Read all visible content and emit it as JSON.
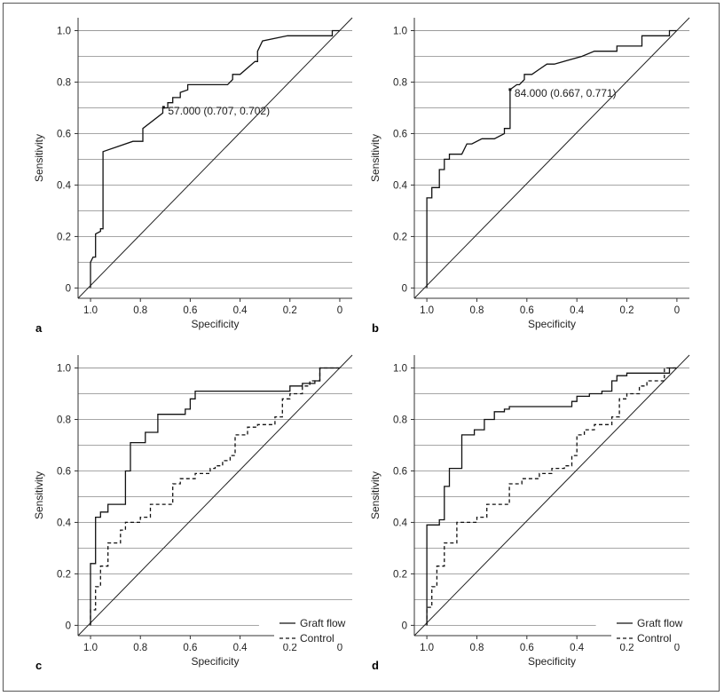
{
  "chart_data": [
    {
      "type": "line",
      "panel_label": "a",
      "xlabel": "Specificity",
      "ylabel": "Sensitivity",
      "xlim": [
        1.05,
        -0.05
      ],
      "ylim": [
        -0.04,
        1.05
      ],
      "x_ticks": [
        "1.0",
        "0.8",
        "0.6",
        "0.4",
        "0.2",
        "0"
      ],
      "y_ticks": [
        "0",
        "0.2",
        "0.4",
        "0.6",
        "0.8",
        "1.0"
      ],
      "annotation": {
        "text": "57.000 (0.707, 0.702)",
        "x": 0.707,
        "y": 0.702
      },
      "series": [
        {
          "name": "ROC",
          "style": "solid",
          "x": [
            1.0,
            1.0,
            0.99,
            0.98,
            0.98,
            0.96,
            0.96,
            0.95,
            0.95,
            0.83,
            0.79,
            0.79,
            0.71,
            0.71,
            0.69,
            0.69,
            0.67,
            0.67,
            0.64,
            0.64,
            0.61,
            0.61,
            0.45,
            0.43,
            0.43,
            0.4,
            0.34,
            0.33,
            0.33,
            0.31,
            0.21,
            0.03,
            0.03,
            0.0
          ],
          "y": [
            0.0,
            0.1,
            0.12,
            0.12,
            0.21,
            0.22,
            0.23,
            0.23,
            0.53,
            0.57,
            0.57,
            0.62,
            0.68,
            0.7,
            0.7,
            0.72,
            0.72,
            0.74,
            0.74,
            0.76,
            0.77,
            0.79,
            0.79,
            0.81,
            0.83,
            0.83,
            0.88,
            0.88,
            0.92,
            0.96,
            0.98,
            0.98,
            1.0,
            1.0
          ]
        }
      ]
    },
    {
      "type": "line",
      "panel_label": "b",
      "xlabel": "Specificity",
      "ylabel": "Sensitivity",
      "xlim": [
        1.05,
        -0.05
      ],
      "ylim": [
        -0.04,
        1.05
      ],
      "x_ticks": [
        "1.0",
        "0.8",
        "0.6",
        "0.4",
        "0.2",
        "0"
      ],
      "y_ticks": [
        "0",
        "0.2",
        "0.4",
        "0.6",
        "0.8",
        "1.0"
      ],
      "annotation": {
        "text": "84.000 (0.667, 0.771)",
        "x": 0.667,
        "y": 0.771
      },
      "series": [
        {
          "name": "ROC",
          "style": "solid",
          "x": [
            1.0,
            1.0,
            0.98,
            0.98,
            0.95,
            0.95,
            0.93,
            0.93,
            0.91,
            0.91,
            0.86,
            0.84,
            0.82,
            0.78,
            0.73,
            0.69,
            0.69,
            0.667,
            0.667,
            0.64,
            0.63,
            0.61,
            0.61,
            0.58,
            0.55,
            0.52,
            0.49,
            0.38,
            0.33,
            0.24,
            0.24,
            0.14,
            0.14,
            0.03,
            0.03,
            0.0
          ],
          "y": [
            0.0,
            0.35,
            0.35,
            0.39,
            0.39,
            0.46,
            0.46,
            0.5,
            0.5,
            0.52,
            0.52,
            0.56,
            0.56,
            0.58,
            0.58,
            0.6,
            0.62,
            0.62,
            0.771,
            0.79,
            0.79,
            0.81,
            0.83,
            0.83,
            0.85,
            0.87,
            0.87,
            0.9,
            0.92,
            0.92,
            0.94,
            0.94,
            0.98,
            0.98,
            1.0,
            1.0
          ]
        }
      ]
    },
    {
      "type": "line",
      "panel_label": "c",
      "xlabel": "Specificity",
      "ylabel": "Sensitivity",
      "xlim": [
        1.05,
        -0.05
      ],
      "ylim": [
        -0.04,
        1.05
      ],
      "x_ticks": [
        "1.0",
        "0.8",
        "0.6",
        "0.4",
        "0.2",
        "0"
      ],
      "y_ticks": [
        "0",
        "0.2",
        "0.4",
        "0.6",
        "0.8",
        "1.0"
      ],
      "legend": {
        "position": "bottom-right"
      },
      "series": [
        {
          "name": "Graft flow",
          "style": "solid",
          "x": [
            1.0,
            1.0,
            0.98,
            0.98,
            0.96,
            0.96,
            0.93,
            0.93,
            0.86,
            0.86,
            0.84,
            0.84,
            0.78,
            0.78,
            0.73,
            0.73,
            0.62,
            0.62,
            0.6,
            0.6,
            0.58,
            0.58,
            0.2,
            0.2,
            0.15,
            0.15,
            0.1,
            0.1,
            0.08,
            0.08,
            0.0
          ],
          "y": [
            0.0,
            0.24,
            0.24,
            0.42,
            0.42,
            0.44,
            0.44,
            0.47,
            0.47,
            0.6,
            0.6,
            0.71,
            0.71,
            0.75,
            0.75,
            0.82,
            0.82,
            0.84,
            0.84,
            0.88,
            0.88,
            0.91,
            0.91,
            0.93,
            0.93,
            0.94,
            0.94,
            0.95,
            0.95,
            1.0,
            1.0
          ]
        },
        {
          "name": "Control",
          "style": "dashed",
          "x": [
            1.0,
            1.0,
            0.98,
            0.98,
            0.96,
            0.96,
            0.93,
            0.93,
            0.88,
            0.88,
            0.86,
            0.86,
            0.8,
            0.8,
            0.76,
            0.76,
            0.67,
            0.67,
            0.64,
            0.64,
            0.58,
            0.58,
            0.52,
            0.52,
            0.5,
            0.5,
            0.47,
            0.47,
            0.44,
            0.44,
            0.42,
            0.42,
            0.37,
            0.37,
            0.33,
            0.33,
            0.26,
            0.26,
            0.23,
            0.23,
            0.2,
            0.2,
            0.15,
            0.15,
            0.12,
            0.12,
            0.08,
            0.08,
            0.0
          ],
          "y": [
            0.0,
            0.06,
            0.06,
            0.15,
            0.15,
            0.23,
            0.23,
            0.32,
            0.32,
            0.37,
            0.37,
            0.4,
            0.4,
            0.42,
            0.42,
            0.47,
            0.47,
            0.55,
            0.55,
            0.57,
            0.57,
            0.59,
            0.59,
            0.61,
            0.61,
            0.62,
            0.62,
            0.64,
            0.64,
            0.66,
            0.66,
            0.74,
            0.74,
            0.77,
            0.77,
            0.78,
            0.78,
            0.81,
            0.81,
            0.88,
            0.88,
            0.9,
            0.9,
            0.93,
            0.93,
            0.95,
            0.95,
            1.0,
            1.0
          ]
        }
      ]
    },
    {
      "type": "line",
      "panel_label": "d",
      "xlabel": "Specificity",
      "ylabel": "Sensitivity",
      "xlim": [
        1.05,
        -0.05
      ],
      "ylim": [
        -0.04,
        1.05
      ],
      "x_ticks": [
        "1.0",
        "0.8",
        "0.6",
        "0.4",
        "0.2",
        "0"
      ],
      "y_ticks": [
        "0",
        "0.2",
        "0.4",
        "0.6",
        "0.8",
        "1.0"
      ],
      "legend": {
        "position": "bottom-right"
      },
      "series": [
        {
          "name": "Graft flow",
          "style": "solid",
          "x": [
            1.0,
            1.0,
            0.95,
            0.95,
            0.93,
            0.93,
            0.91,
            0.91,
            0.86,
            0.86,
            0.81,
            0.81,
            0.77,
            0.77,
            0.73,
            0.73,
            0.69,
            0.69,
            0.67,
            0.67,
            0.42,
            0.42,
            0.4,
            0.4,
            0.35,
            0.35,
            0.3,
            0.3,
            0.26,
            0.26,
            0.24,
            0.24,
            0.2,
            0.2,
            0.03,
            0.03,
            0.0
          ],
          "y": [
            0.0,
            0.39,
            0.39,
            0.41,
            0.41,
            0.54,
            0.54,
            0.61,
            0.61,
            0.74,
            0.74,
            0.76,
            0.76,
            0.8,
            0.8,
            0.83,
            0.83,
            0.84,
            0.84,
            0.85,
            0.85,
            0.87,
            0.87,
            0.89,
            0.89,
            0.9,
            0.9,
            0.91,
            0.91,
            0.95,
            0.95,
            0.97,
            0.97,
            0.98,
            0.98,
            1.0,
            1.0
          ]
        },
        {
          "name": "Control",
          "style": "dashed",
          "x": [
            1.0,
            1.0,
            0.98,
            0.98,
            0.96,
            0.96,
            0.93,
            0.93,
            0.88,
            0.88,
            0.8,
            0.8,
            0.76,
            0.76,
            0.67,
            0.67,
            0.62,
            0.62,
            0.55,
            0.55,
            0.5,
            0.5,
            0.45,
            0.45,
            0.42,
            0.42,
            0.4,
            0.4,
            0.37,
            0.37,
            0.33,
            0.33,
            0.26,
            0.26,
            0.23,
            0.23,
            0.2,
            0.2,
            0.15,
            0.15,
            0.12,
            0.12,
            0.05,
            0.05,
            0.0
          ],
          "y": [
            0.0,
            0.07,
            0.07,
            0.15,
            0.15,
            0.23,
            0.23,
            0.32,
            0.32,
            0.4,
            0.4,
            0.42,
            0.42,
            0.47,
            0.47,
            0.55,
            0.55,
            0.57,
            0.57,
            0.59,
            0.59,
            0.61,
            0.61,
            0.62,
            0.62,
            0.66,
            0.66,
            0.74,
            0.74,
            0.76,
            0.76,
            0.78,
            0.78,
            0.81,
            0.81,
            0.88,
            0.88,
            0.9,
            0.9,
            0.93,
            0.93,
            0.95,
            0.95,
            1.0,
            1.0
          ]
        }
      ]
    }
  ]
}
